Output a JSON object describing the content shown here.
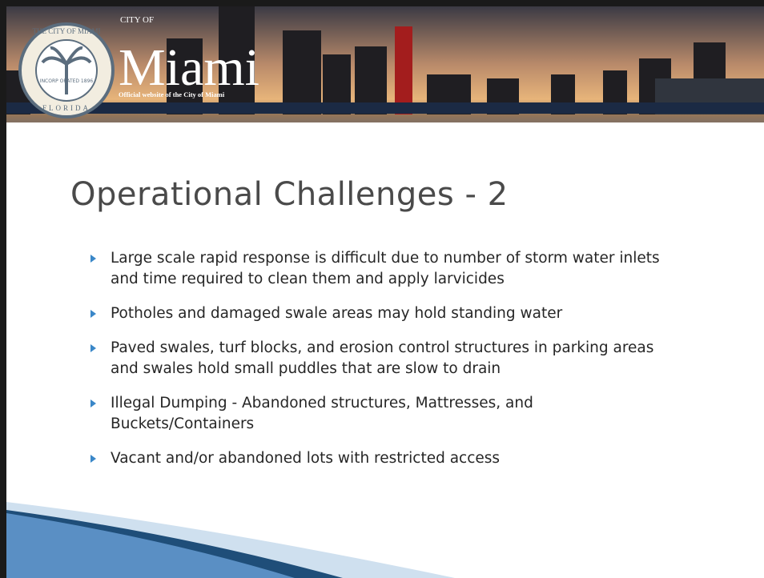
{
  "header": {
    "seal_top": "THE CITY OF MIAMI",
    "seal_middle": "INCORP ORATED 1896",
    "seal_bottom": "FLORIDA",
    "city_of": "CITY OF",
    "city": "Miami",
    "tagline": "Official website of the City of Miami"
  },
  "slide": {
    "title": "Operational Challenges - 2",
    "bullets": [
      "Large scale rapid response is difficult due to number of storm water inlets and time required to clean them and apply larvicides",
      "Potholes and damaged swale areas may hold standing water",
      "Paved swales, turf blocks, and erosion control structures in parking areas and swales hold small puddles that are slow to drain",
      "Illegal Dumping - Abandoned structures, Mattresses, and Buckets/Containers",
      "Vacant and/or abandoned lots with restricted access"
    ]
  }
}
